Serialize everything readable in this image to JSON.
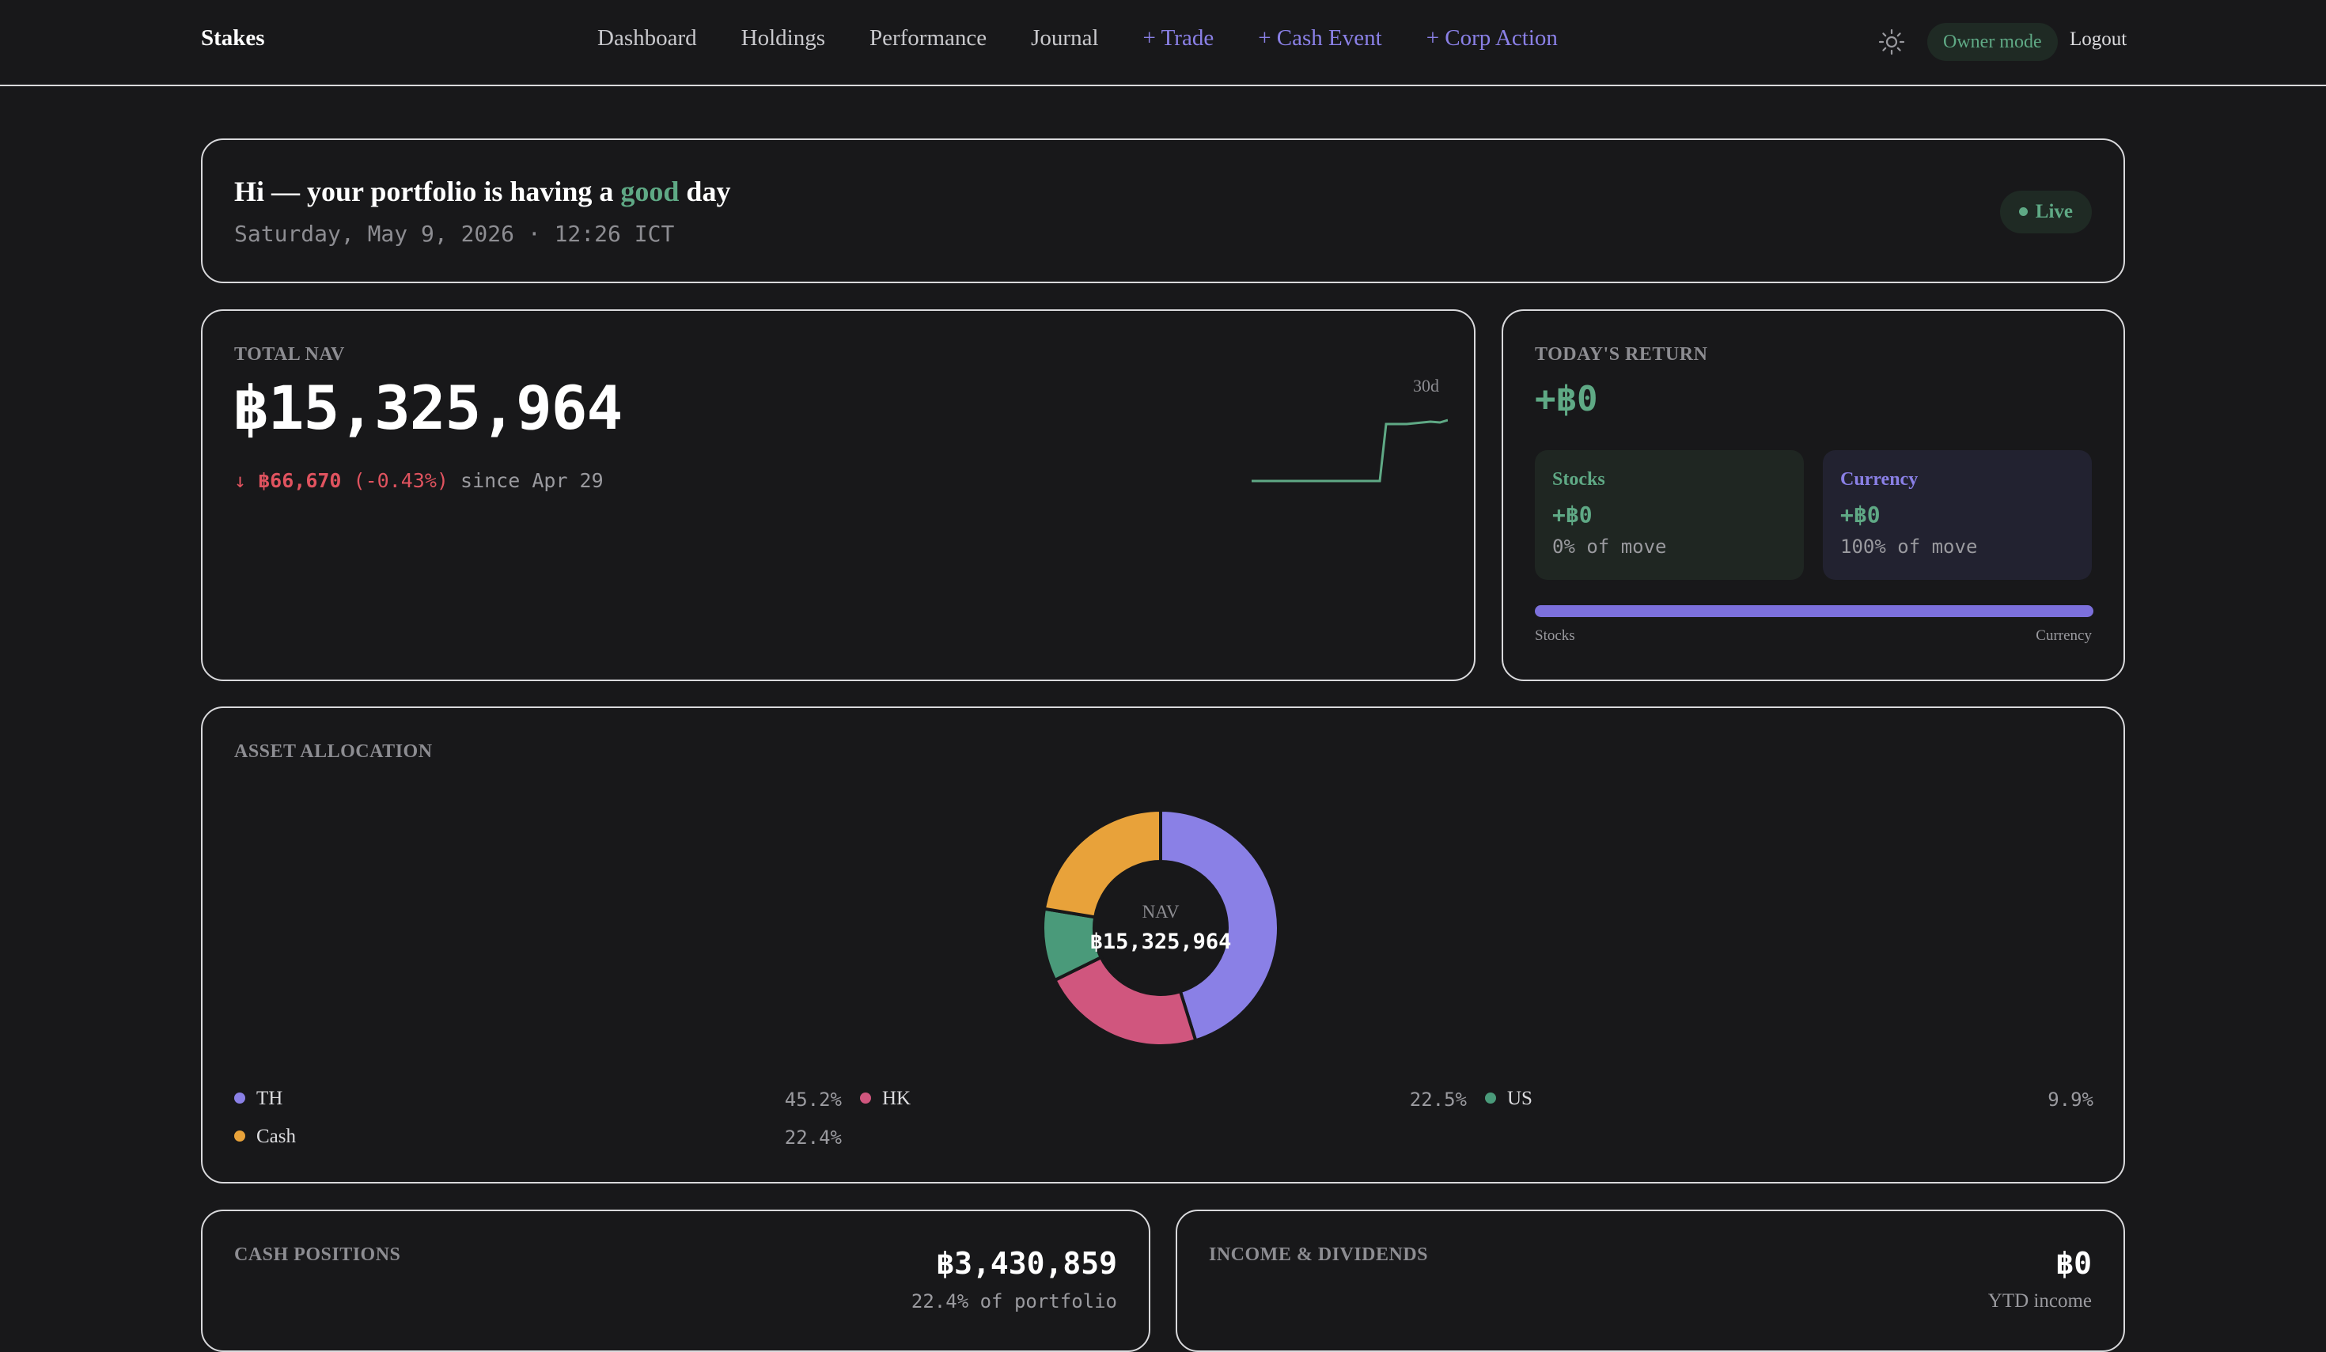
{
  "brand": "Stakes",
  "nav": {
    "links": [
      "Dashboard",
      "Holdings",
      "Performance",
      "Journal",
      "+ Trade",
      "+ Cash Event",
      "+ Corp Action"
    ],
    "owner_mode": "Owner mode",
    "logout": "Logout"
  },
  "greeting": {
    "prefix": "Hi — your portfolio is having a",
    "mood": "good",
    "suffix": "day",
    "date": "Saturday, May 9, 2026 · 12:26 ICT",
    "live": "Live"
  },
  "total_nav": {
    "label": "TOTAL NAV",
    "value": "฿15,325,964",
    "arrow": "↓",
    "change_amount": "฿66,670",
    "change_pct": "(-0.43%)",
    "since": "since Apr 29",
    "spark_label": "30d"
  },
  "todays_return": {
    "label": "TODAY'S RETURN",
    "value": "+฿0",
    "stocks": {
      "title": "Stocks",
      "value": "+฿0",
      "share": "0% of move"
    },
    "currency": {
      "title": "Currency",
      "value": "+฿0",
      "share": "100% of move"
    },
    "bar_left": "Stocks",
    "bar_right": "Currency",
    "stocks_fraction": 0.0
  },
  "allocation": {
    "label": "ASSET ALLOCATION",
    "center_label": "NAV",
    "center_value": "฿15,325,964",
    "items": [
      {
        "name": "TH",
        "pct": "45.2%",
        "value": 45.2,
        "color": "#8a80e6"
      },
      {
        "name": "HK",
        "pct": "22.5%",
        "value": 22.5,
        "color": "#d0567e"
      },
      {
        "name": "US",
        "pct": "9.9%",
        "value": 9.9,
        "color": "#4a9a7a"
      },
      {
        "name": "Cash",
        "pct": "22.4%",
        "value": 22.4,
        "color": "#e8a23a"
      }
    ]
  },
  "cash_positions": {
    "label": "CASH POSITIONS",
    "value": "฿3,430,859",
    "share": "22.4% of portfolio"
  },
  "income": {
    "label": "INCOME & DIVIDENDS",
    "value": "฿0",
    "sub": "YTD income"
  }
}
